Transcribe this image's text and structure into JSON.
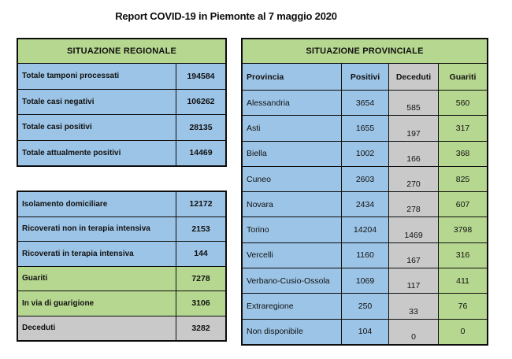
{
  "title": "Report COVID-19 in Piemonte al 7 maggio 2020",
  "colors": {
    "green": "#b6d78f",
    "blue": "#9cc4e6",
    "gray": "#c9c9c9"
  },
  "regional": {
    "header": "SITUAZIONE REGIONALE",
    "rows": [
      {
        "label": "Totale tamponi processati",
        "value": "194584",
        "color": "blue"
      },
      {
        "label": "Totale casi negativi",
        "value": "106262",
        "color": "blue"
      },
      {
        "label": "Totale casi positivi",
        "value": "28135",
        "color": "blue"
      },
      {
        "label": "Totale attualmente positivi",
        "value": "14469",
        "color": "blue"
      }
    ]
  },
  "detail": {
    "rows": [
      {
        "label": "Isolamento domiciliare",
        "value": "12172",
        "color": "blue"
      },
      {
        "label": "Ricoverati non in terapia intensiva",
        "value": "2153",
        "color": "blue"
      },
      {
        "label": "Ricoverati in terapia intensiva",
        "value": "144",
        "color": "blue"
      },
      {
        "label": "Guariti",
        "value": "7278",
        "color": "green"
      },
      {
        "label": "In via di guarigione",
        "value": "3106",
        "color": "green"
      },
      {
        "label": "Deceduti",
        "value": "3282",
        "color": "gray"
      }
    ]
  },
  "provincial": {
    "header": "SITUAZIONE PROVINCIALE",
    "columns": [
      "Provincia",
      "Positivi",
      "Deceduti",
      "Guariti"
    ],
    "rows": [
      {
        "name": "Alessandria",
        "positivi": "3654",
        "deceduti": "585",
        "guariti": "560"
      },
      {
        "name": "Asti",
        "positivi": "1655",
        "deceduti": "197",
        "guariti": "317"
      },
      {
        "name": "Biella",
        "positivi": "1002",
        "deceduti": "166",
        "guariti": "368"
      },
      {
        "name": "Cuneo",
        "positivi": "2603",
        "deceduti": "270",
        "guariti": "825"
      },
      {
        "name": "Novara",
        "positivi": "2434",
        "deceduti": "278",
        "guariti": "607"
      },
      {
        "name": "Torino",
        "positivi": "14204",
        "deceduti": "1469",
        "guariti": "3798"
      },
      {
        "name": "Vercelli",
        "positivi": "1160",
        "deceduti": "167",
        "guariti": "316"
      },
      {
        "name": "Verbano-Cusio-Ossola",
        "positivi": "1069",
        "deceduti": "117",
        "guariti": "411"
      },
      {
        "name": "Extraregione",
        "positivi": "250",
        "deceduti": "33",
        "guariti": "76"
      },
      {
        "name": "Non disponibile",
        "positivi": "104",
        "deceduti": "0",
        "guariti": "0"
      }
    ]
  }
}
